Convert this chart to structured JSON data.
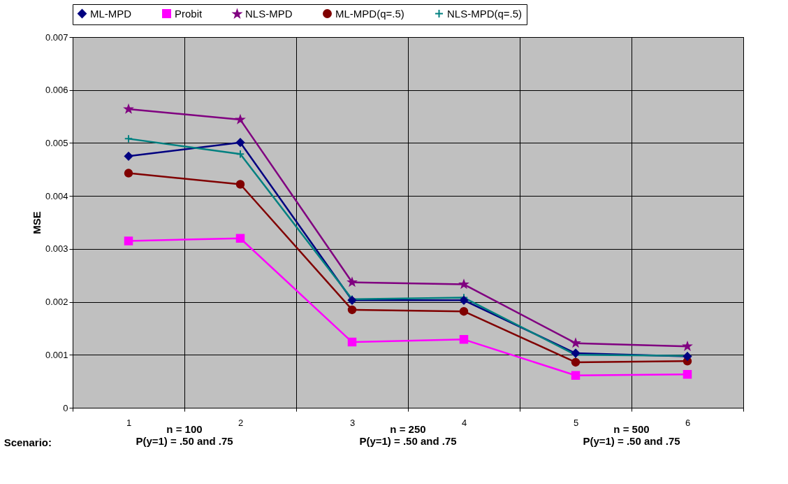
{
  "chart_data": {
    "type": "line",
    "ylabel": "MSE",
    "xlabel": "Scenario:",
    "categories": [
      "1",
      "2",
      "3",
      "4",
      "5",
      "6"
    ],
    "ylim": [
      0,
      0.007
    ],
    "yticks": [
      0,
      0.001,
      0.002,
      0.003,
      0.004,
      0.005,
      0.006,
      0.007
    ],
    "grid": true,
    "legend": "top",
    "annotations": [
      "n = 100\nP(y=1) = .50 and .75",
      "n = 250\nP(y=1) = .50 and .75",
      "n = 500\nP(y=1) = .50 and .75"
    ],
    "series": [
      {
        "name": "ML-MPD",
        "color": "#000080",
        "marker": "diamond",
        "values": [
          0.00475,
          0.00501,
          0.00203,
          0.00203,
          0.00103,
          0.00097
        ]
      },
      {
        "name": "Probit",
        "color": "#ff00ff",
        "marker": "square",
        "values": [
          0.00315,
          0.0032,
          0.00124,
          0.00129,
          0.00061,
          0.00063
        ]
      },
      {
        "name": "NLS-MPD",
        "color": "#800080",
        "marker": "star",
        "values": [
          0.00564,
          0.00544,
          0.00237,
          0.00233,
          0.00122,
          0.00116
        ]
      },
      {
        "name": "ML-MPD(q=.5)",
        "color": "#800000",
        "marker": "circle",
        "values": [
          0.00443,
          0.00422,
          0.00185,
          0.00182,
          0.00086,
          0.00088
        ]
      },
      {
        "name": "NLS-MPD(q=.5)",
        "color": "#008080",
        "marker": "cross",
        "values": [
          0.00508,
          0.00479,
          0.00205,
          0.00208,
          0.001,
          0.00098
        ]
      }
    ]
  }
}
